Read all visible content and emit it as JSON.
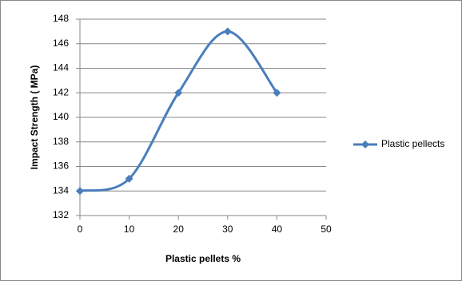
{
  "chart_data": {
    "type": "line",
    "x_label": "Plastic pellets %",
    "y_label": "Impact Strength ( MPa)",
    "x": [
      0,
      10,
      20,
      30,
      40
    ],
    "series": [
      {
        "name": "Plastic pellects",
        "color": "#4a7ebb",
        "values": [
          134,
          135,
          142,
          147,
          142
        ]
      }
    ],
    "xlim": [
      0,
      50
    ],
    "xticks": [
      0,
      10,
      20,
      30,
      40,
      50
    ],
    "ylim": [
      132,
      148
    ],
    "yticks": [
      132,
      134,
      136,
      138,
      140,
      142,
      144,
      146,
      148
    ],
    "grid": true,
    "smooth": true,
    "legend": "right"
  }
}
